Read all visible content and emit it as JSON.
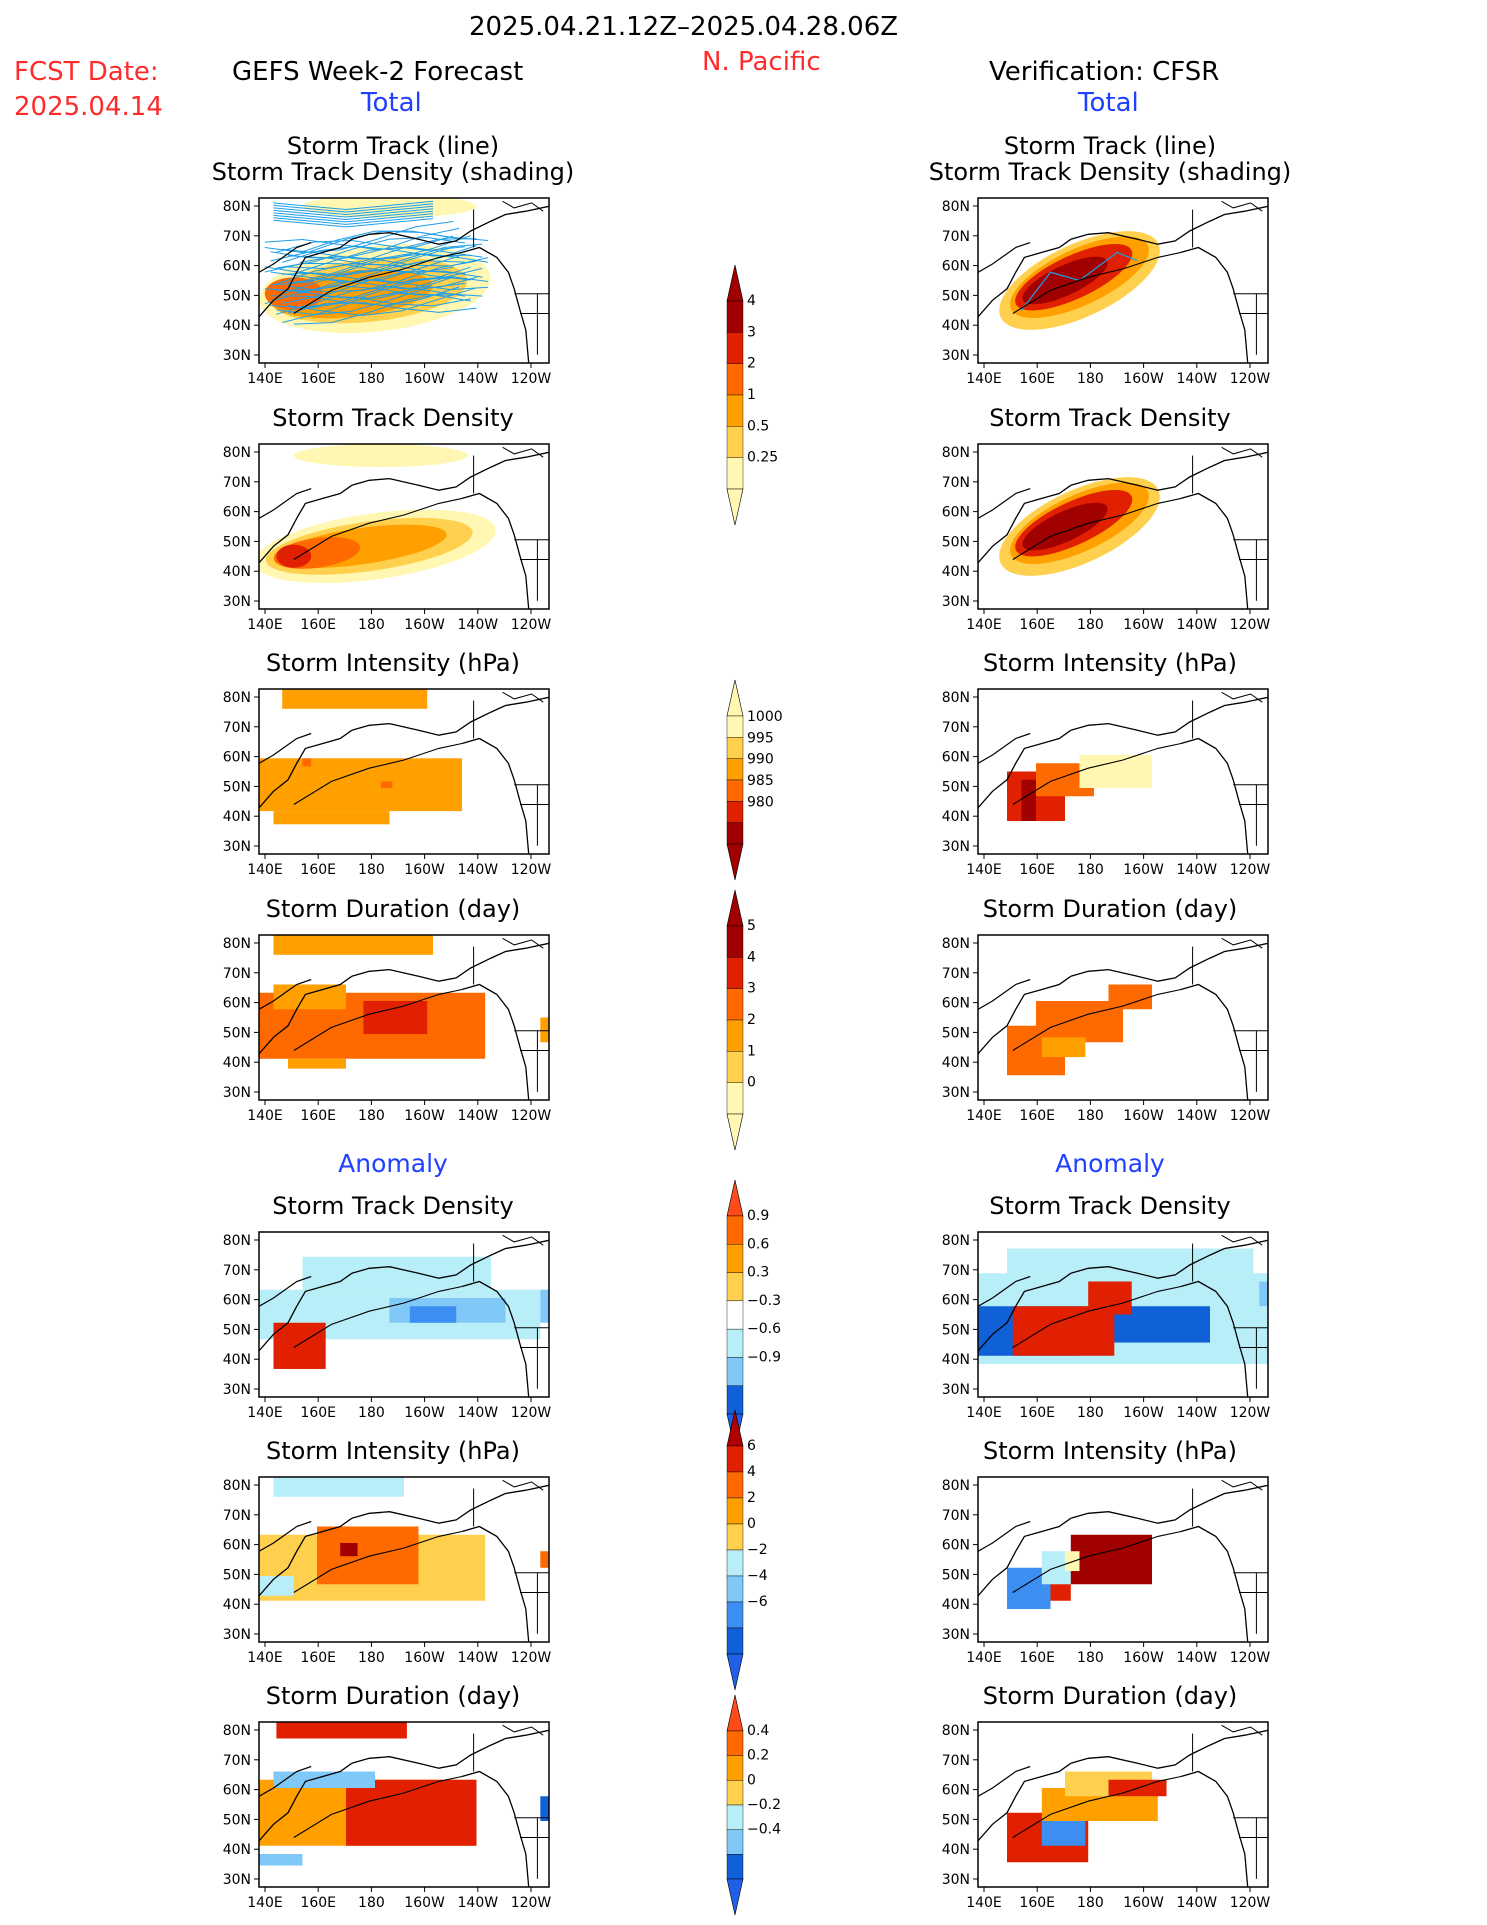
{
  "header": {
    "date_range": "2025.04.21.12Z–2025.04.28.06Z",
    "region": "N. Pacific",
    "fcst_label": "FCST Date:",
    "fcst_date": "2025.04.14",
    "left_title": "GEFS Week-2 Forecast",
    "right_title": "Verification: CFSR",
    "left_total": "Total",
    "right_total": "Total",
    "left_anomaly": "Anomaly",
    "right_anomaly": "Anomaly"
  },
  "panel_titles": {
    "track_line": "Storm Track (line)",
    "track_density_shading": "Storm Track Density (shading)",
    "density": "Storm Track Density",
    "intensity": "Storm Intensity (hPa)",
    "duration": "Storm Duration (day)"
  },
  "axes": {
    "x_ticks": [
      "140E",
      "160E",
      "180",
      "160W",
      "140W",
      "120W"
    ],
    "y_ticks": [
      "80N",
      "70N",
      "60N",
      "50N",
      "40N",
      "30N"
    ]
  },
  "colors": {
    "warm": [
      "#fff7b2",
      "#ffd04d",
      "#ffa000",
      "#ff6a00",
      "#e02000",
      "#a00000"
    ],
    "cool": [
      "#b8eef8",
      "#80c8f8",
      "#3c8ef0",
      "#1060d8"
    ],
    "track_line": "#1e9ee8"
  },
  "colorbars": [
    {
      "name": "density-total",
      "labels": [
        "4",
        "3",
        "2",
        "1",
        "0.5",
        "0.25"
      ]
    },
    {
      "name": "intensity-total",
      "labels": [
        "1000",
        "995",
        "990",
        "985",
        "980"
      ]
    },
    {
      "name": "duration-total",
      "labels": [
        "5",
        "4",
        "3",
        "2",
        "1",
        "0"
      ]
    },
    {
      "name": "density-anomaly",
      "labels": [
        "0.9",
        "0.6",
        "0.3",
        "−0.3",
        "−0.6",
        "−0.9"
      ]
    },
    {
      "name": "intensity-anomaly",
      "labels": [
        "6",
        "4",
        "2",
        "0",
        "−2",
        "−4",
        "−6"
      ]
    },
    {
      "name": "duration-anomaly",
      "labels": [
        "0.4",
        "0.2",
        "0",
        "−0.2",
        "−0.4"
      ]
    }
  ],
  "chart_data": [
    {
      "type": "heatmap",
      "panel": "forecast-total-track",
      "title": "Storm Track (line) / Storm Track Density (shading)",
      "levels": [
        "0.25",
        "0.5",
        "1",
        "2",
        "3",
        "4"
      ],
      "xlim": [
        "140E",
        "115W"
      ],
      "ylim": [
        "25N",
        "85N"
      ]
    },
    {
      "type": "heatmap",
      "panel": "forecast-total-density",
      "title": "Storm Track Density",
      "levels": [
        "0.25",
        "0.5",
        "1",
        "2",
        "3",
        "4"
      ]
    },
    {
      "type": "heatmap",
      "panel": "forecast-total-intensity",
      "title": "Storm Intensity (hPa)",
      "levels": [
        "1000",
        "995",
        "990",
        "985",
        "980"
      ]
    },
    {
      "type": "heatmap",
      "panel": "forecast-total-duration",
      "title": "Storm Duration (day)",
      "levels": [
        "0",
        "1",
        "2",
        "3",
        "4",
        "5"
      ]
    },
    {
      "type": "heatmap",
      "panel": "forecast-anomaly-density",
      "title": "Storm Track Density",
      "levels": [
        "-0.9",
        "-0.6",
        "-0.3",
        "0.3",
        "0.6",
        "0.9"
      ]
    },
    {
      "type": "heatmap",
      "panel": "forecast-anomaly-intensity",
      "title": "Storm Intensity (hPa)",
      "levels": [
        "-6",
        "-4",
        "-2",
        "0",
        "2",
        "4",
        "6"
      ]
    },
    {
      "type": "heatmap",
      "panel": "forecast-anomaly-duration",
      "title": "Storm Duration (day)",
      "levels": [
        "-0.4",
        "-0.2",
        "0",
        "0.2",
        "0.4"
      ]
    },
    {
      "type": "heatmap",
      "panel": "verification-total-track",
      "title": "Storm Track (line) / Storm Track Density (shading)"
    },
    {
      "type": "heatmap",
      "panel": "verification-total-density",
      "title": "Storm Track Density"
    },
    {
      "type": "heatmap",
      "panel": "verification-total-intensity",
      "title": "Storm Intensity (hPa)"
    },
    {
      "type": "heatmap",
      "panel": "verification-total-duration",
      "title": "Storm Duration (day)"
    },
    {
      "type": "heatmap",
      "panel": "verification-anomaly-density",
      "title": "Storm Track Density"
    },
    {
      "type": "heatmap",
      "panel": "verification-anomaly-intensity",
      "title": "Storm Intensity (hPa)"
    },
    {
      "type": "heatmap",
      "panel": "verification-anomaly-duration",
      "title": "Storm Duration (day)"
    }
  ]
}
